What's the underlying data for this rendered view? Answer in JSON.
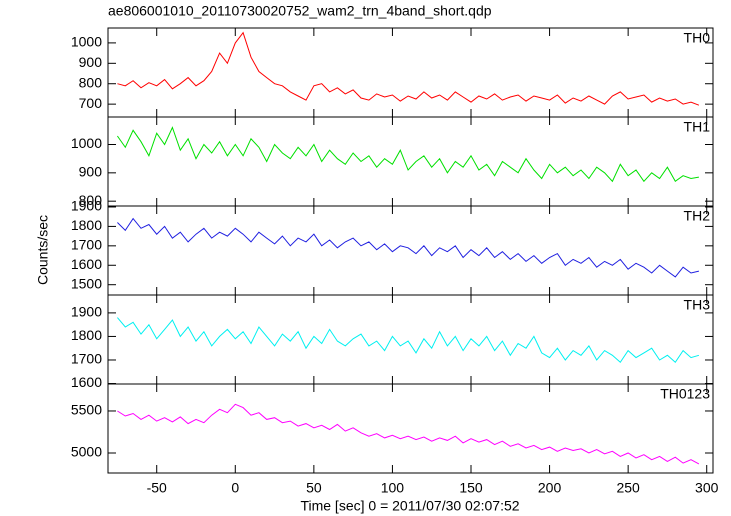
{
  "chart_data": [
    {
      "type": "line",
      "title": "ae806001010_20110730020752_wam2_trn_4band_short.qdp",
      "x": [
        -75,
        -70,
        -65,
        -60,
        -55,
        -50,
        -45,
        -40,
        -35,
        -30,
        -25,
        -20,
        -15,
        -10,
        -5,
        0,
        5,
        10,
        15,
        20,
        25,
        30,
        35,
        40,
        45,
        50,
        55,
        60,
        65,
        70,
        75,
        80,
        85,
        90,
        95,
        100,
        105,
        110,
        115,
        120,
        125,
        130,
        135,
        140,
        145,
        150,
        155,
        160,
        165,
        170,
        175,
        180,
        185,
        190,
        195,
        200,
        205,
        210,
        215,
        220,
        225,
        230,
        235,
        240,
        245,
        250,
        255,
        260,
        265,
        270,
        275,
        280,
        285,
        290,
        295
      ],
      "series": [
        {
          "name": "TH0",
          "color": "#ff0000",
          "values": [
            800,
            790,
            815,
            780,
            805,
            790,
            820,
            775,
            800,
            830,
            790,
            815,
            860,
            950,
            900,
            1000,
            1050,
            930,
            860,
            830,
            800,
            790,
            760,
            740,
            720,
            790,
            800,
            760,
            780,
            750,
            770,
            730,
            720,
            750,
            735,
            745,
            715,
            740,
            725,
            760,
            730,
            745,
            720,
            760,
            735,
            710,
            740,
            725,
            750,
            720,
            735,
            745,
            715,
            740,
            730,
            720,
            745,
            705,
            730,
            715,
            740,
            720,
            700,
            740,
            760,
            725,
            735,
            745,
            710,
            730,
            715,
            725,
            700,
            710,
            695
          ]
        }
      ],
      "xlim": [
        -81,
        304
      ],
      "ylim": [
        637,
        1073
      ],
      "yticks": [
        700,
        800,
        900,
        1000
      ]
    },
    {
      "type": "line",
      "x": [
        -75,
        -70,
        -65,
        -60,
        -55,
        -50,
        -45,
        -40,
        -35,
        -30,
        -25,
        -20,
        -15,
        -10,
        -5,
        0,
        5,
        10,
        15,
        20,
        25,
        30,
        35,
        40,
        45,
        50,
        55,
        60,
        65,
        70,
        75,
        80,
        85,
        90,
        95,
        100,
        105,
        110,
        115,
        120,
        125,
        130,
        135,
        140,
        145,
        150,
        155,
        160,
        165,
        170,
        175,
        180,
        185,
        190,
        195,
        200,
        205,
        210,
        215,
        220,
        225,
        230,
        235,
        240,
        245,
        250,
        255,
        260,
        265,
        270,
        275,
        280,
        285,
        290,
        295
      ],
      "series": [
        {
          "name": "TH1",
          "color": "#00e000",
          "values": [
            1030,
            990,
            1050,
            1010,
            960,
            1040,
            1000,
            1060,
            980,
            1020,
            950,
            1000,
            970,
            1010,
            960,
            1000,
            960,
            1020,
            990,
            940,
            1000,
            970,
            950,
            990,
            960,
            1000,
            940,
            980,
            950,
            930,
            970,
            940,
            960,
            920,
            950,
            930,
            980,
            910,
            940,
            960,
            920,
            950,
            900,
            940,
            920,
            960,
            910,
            930,
            890,
            940,
            920,
            900,
            950,
            910,
            880,
            930,
            900,
            920,
            890,
            910,
            880,
            920,
            900,
            870,
            930,
            890,
            910,
            870,
            900,
            880,
            920,
            870,
            890,
            880,
            885
          ]
        }
      ],
      "xlim": [
        -81,
        304
      ],
      "ylim": [
        783,
        1097
      ],
      "yticks": [
        800,
        900,
        1000
      ]
    },
    {
      "type": "line",
      "ylabel": "Counts/sec",
      "x": [
        -75,
        -70,
        -65,
        -60,
        -55,
        -50,
        -45,
        -40,
        -35,
        -30,
        -25,
        -20,
        -15,
        -10,
        -5,
        0,
        5,
        10,
        15,
        20,
        25,
        30,
        35,
        40,
        45,
        50,
        55,
        60,
        65,
        70,
        75,
        80,
        85,
        90,
        95,
        100,
        105,
        110,
        115,
        120,
        125,
        130,
        135,
        140,
        145,
        150,
        155,
        160,
        165,
        170,
        175,
        180,
        185,
        190,
        195,
        200,
        205,
        210,
        215,
        220,
        225,
        230,
        235,
        240,
        245,
        250,
        255,
        260,
        265,
        270,
        275,
        280,
        285,
        290,
        295
      ],
      "series": [
        {
          "name": "TH2",
          "color": "#2020e0",
          "values": [
            1820,
            1780,
            1840,
            1790,
            1810,
            1760,
            1800,
            1740,
            1770,
            1720,
            1760,
            1790,
            1740,
            1770,
            1750,
            1790,
            1760,
            1720,
            1770,
            1740,
            1710,
            1750,
            1700,
            1740,
            1720,
            1760,
            1700,
            1730,
            1690,
            1720,
            1740,
            1700,
            1720,
            1680,
            1710,
            1670,
            1700,
            1690,
            1660,
            1700,
            1650,
            1690,
            1670,
            1700,
            1640,
            1680,
            1650,
            1690,
            1640,
            1670,
            1630,
            1660,
            1620,
            1650,
            1610,
            1640,
            1660,
            1600,
            1630,
            1610,
            1640,
            1590,
            1620,
            1600,
            1630,
            1580,
            1610,
            1590,
            1560,
            1600,
            1570,
            1540,
            1590,
            1560,
            1570
          ]
        }
      ],
      "xlim": [
        -81,
        304
      ],
      "ylim": [
        1447,
        1905
      ],
      "yticks": [
        1500,
        1600,
        1700,
        1800,
        1900
      ]
    },
    {
      "type": "line",
      "x": [
        -75,
        -70,
        -65,
        -60,
        -55,
        -50,
        -45,
        -40,
        -35,
        -30,
        -25,
        -20,
        -15,
        -10,
        -5,
        0,
        5,
        10,
        15,
        20,
        25,
        30,
        35,
        40,
        45,
        50,
        55,
        60,
        65,
        70,
        75,
        80,
        85,
        90,
        95,
        100,
        105,
        110,
        115,
        120,
        125,
        130,
        135,
        140,
        145,
        150,
        155,
        160,
        165,
        170,
        175,
        180,
        185,
        190,
        195,
        200,
        205,
        210,
        215,
        220,
        225,
        230,
        235,
        240,
        245,
        250,
        255,
        260,
        265,
        270,
        275,
        280,
        285,
        290,
        295
      ],
      "series": [
        {
          "name": "TH3",
          "color": "#00f0f0",
          "values": [
            1880,
            1840,
            1860,
            1810,
            1850,
            1790,
            1830,
            1870,
            1800,
            1840,
            1780,
            1820,
            1760,
            1800,
            1830,
            1790,
            1820,
            1770,
            1840,
            1800,
            1760,
            1810,
            1780,
            1820,
            1750,
            1800,
            1770,
            1830,
            1780,
            1760,
            1790,
            1810,
            1760,
            1780,
            1740,
            1800,
            1760,
            1780,
            1730,
            1790,
            1750,
            1820,
            1760,
            1800,
            1740,
            1790,
            1760,
            1800,
            1740,
            1780,
            1720,
            1770,
            1750,
            1800,
            1730,
            1710,
            1750,
            1700,
            1740,
            1720,
            1760,
            1700,
            1740,
            1720,
            1690,
            1740,
            1710,
            1730,
            1750,
            1700,
            1720,
            1690,
            1740,
            1710,
            1720
          ]
        }
      ],
      "xlim": [
        -81,
        304
      ],
      "ylim": [
        1598,
        1976
      ],
      "yticks": [
        1600,
        1700,
        1800,
        1900
      ]
    },
    {
      "type": "line",
      "xlabel": "Time [sec] 0 = 2011/07/30 02:07:52",
      "x": [
        -75,
        -70,
        -65,
        -60,
        -55,
        -50,
        -45,
        -40,
        -35,
        -30,
        -25,
        -20,
        -15,
        -10,
        -5,
        0,
        5,
        10,
        15,
        20,
        25,
        30,
        35,
        40,
        45,
        50,
        55,
        60,
        65,
        70,
        75,
        80,
        85,
        90,
        95,
        100,
        105,
        110,
        115,
        120,
        125,
        130,
        135,
        140,
        145,
        150,
        155,
        160,
        165,
        170,
        175,
        180,
        185,
        190,
        195,
        200,
        205,
        210,
        215,
        220,
        225,
        230,
        235,
        240,
        245,
        250,
        255,
        260,
        265,
        270,
        275,
        280,
        285,
        290,
        295
      ],
      "series": [
        {
          "name": "TH0123",
          "color": "#ff00ff",
          "values": [
            5500,
            5440,
            5470,
            5400,
            5450,
            5380,
            5420,
            5370,
            5430,
            5350,
            5400,
            5360,
            5450,
            5520,
            5480,
            5580,
            5540,
            5450,
            5480,
            5400,
            5420,
            5360,
            5380,
            5320,
            5350,
            5300,
            5330,
            5280,
            5340,
            5260,
            5300,
            5240,
            5200,
            5230,
            5180,
            5210,
            5170,
            5200,
            5160,
            5190,
            5140,
            5180,
            5150,
            5200,
            5120,
            5170,
            5130,
            5160,
            5100,
            5140,
            5080,
            5110,
            5060,
            5090,
            5040,
            5070,
            5020,
            5060,
            5030,
            5050,
            5000,
            5040,
            4990,
            5020,
            4960,
            5000,
            4940,
            4980,
            4920,
            4960,
            4900,
            4950,
            4880,
            4920,
            4870
          ]
        }
      ],
      "xlim": [
        -81,
        304
      ],
      "ylim": [
        4762,
        5821
      ],
      "yticks": [
        5000,
        5500
      ],
      "xticks": [
        -50,
        0,
        50,
        100,
        150,
        200,
        250,
        300
      ]
    }
  ]
}
